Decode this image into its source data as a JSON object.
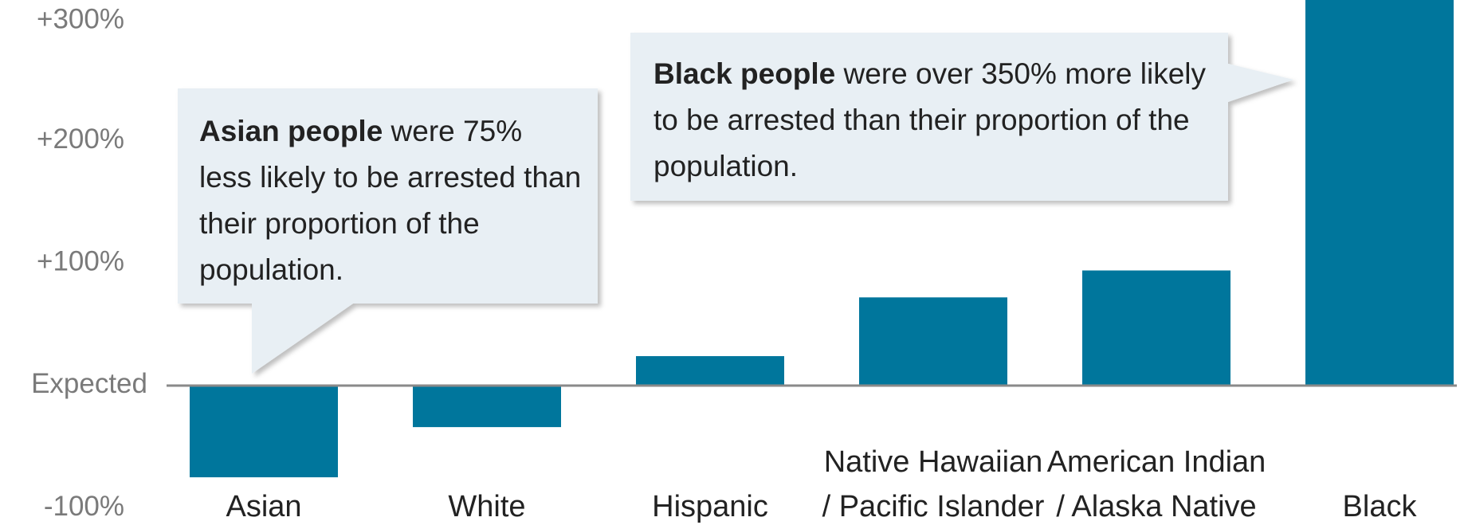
{
  "chart_data": {
    "type": "bar",
    "categories": [
      "Asian",
      "White",
      "Hispanic",
      "Native Hawaiian\n/ Pacific Islander",
      "American Indian\n/ Alaska Native",
      "Black"
    ],
    "values": [
      -75,
      -34,
      24,
      72,
      94,
      355
    ],
    "color": "#00769c",
    "ylim": [
      -100,
      315
    ],
    "yticks": [
      {
        "value": -100,
        "label": "-100%"
      },
      {
        "value": 0,
        "label": "Expected"
      },
      {
        "value": 100,
        "label": "+100%"
      },
      {
        "value": 200,
        "label": "+200%"
      },
      {
        "value": 300,
        "label": "+300%"
      }
    ],
    "annotations": [
      {
        "bold": "Asian people",
        "text": " were 75% less likely to be arrested than their proportion of the population."
      },
      {
        "bold": "Black people",
        "text": " were over 350% more likely to be arrested than their proportion of the population."
      }
    ]
  }
}
